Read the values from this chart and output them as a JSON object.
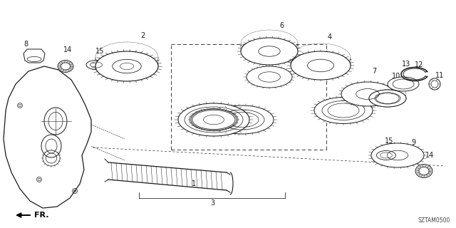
{
  "background_color": "#ffffff",
  "diagram_code": "SZTAM0500",
  "fr_label": "FR.",
  "line_color": "#1a1a1a",
  "label_fontsize": 7,
  "fr_fontsize": 8
}
